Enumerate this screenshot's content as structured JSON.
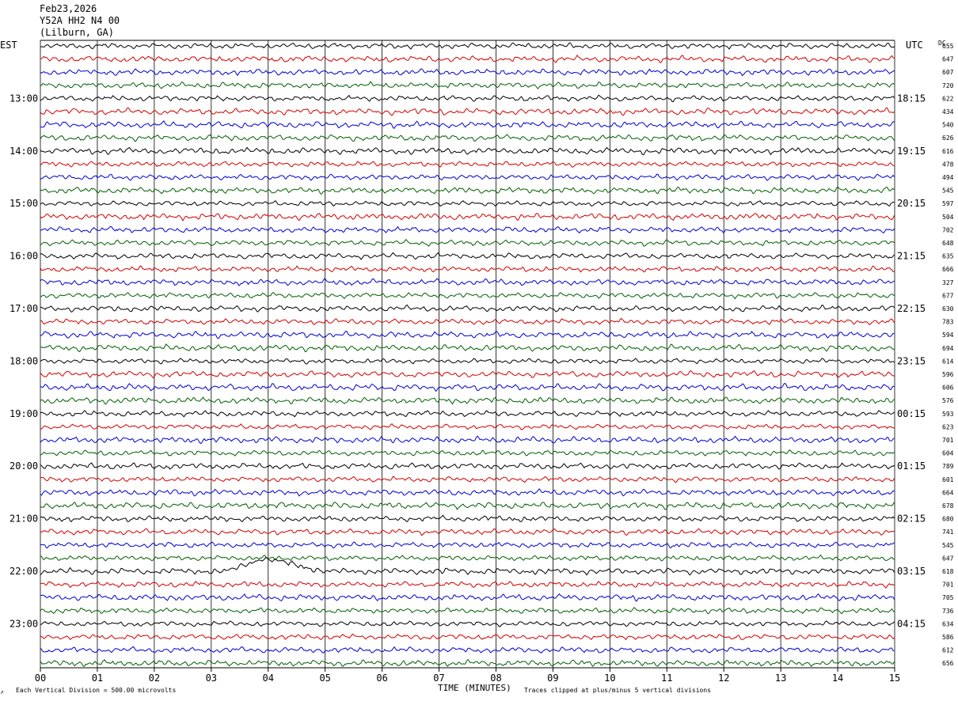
{
  "header": {
    "date": "Feb23,2026",
    "station": "Y52A HH2 N4 00",
    "location": "(Lilburn, GA)"
  },
  "left_axis_label": "EST",
  "right_axis_label": "UTC",
  "dc_label": "DC",
  "footer": {
    "scale_note": "Each Vertical Division =  500.00 microvolts",
    "xlabel": "TIME (MINUTES)",
    "clip_note": "Traces clipped at plus/minus 5 vertical divisions"
  },
  "colors": {
    "trace_cycle": [
      "#000000",
      "#d40000",
      "#0000d4",
      "#006000"
    ],
    "grid": "#000000"
  },
  "chart_data": {
    "type": "line",
    "title": "",
    "xlabel": "TIME (MINUTES)",
    "xlim": [
      0,
      15
    ],
    "x_ticks": [
      "00",
      "01",
      "02",
      "03",
      "04",
      "05",
      "06",
      "07",
      "08",
      "09",
      "10",
      "11",
      "12",
      "13",
      "14",
      "15"
    ],
    "row_count": 48,
    "rows_per_hour": 4,
    "est_hour_labels": [
      "13:00",
      "14:00",
      "15:00",
      "16:00",
      "17:00",
      "18:00",
      "19:00",
      "20:00",
      "21:00",
      "22:00",
      "23:00"
    ],
    "utc_hour_labels": [
      "18:15",
      "19:15",
      "20:15",
      "21:15",
      "22:15",
      "23:15",
      "00:15",
      "01:15",
      "02:15",
      "03:15",
      "04:15"
    ],
    "dc_offsets": [
      655,
      647,
      607,
      720,
      622,
      434,
      540,
      626,
      616,
      478,
      494,
      545,
      597,
      504,
      702,
      648,
      635,
      666,
      327,
      677,
      630,
      783,
      594,
      694,
      614,
      596,
      606,
      576,
      593,
      623,
      701,
      604,
      789,
      601,
      664,
      678,
      680,
      741,
      545,
      647,
      618,
      701,
      705,
      736,
      634,
      586,
      612,
      656
    ],
    "events": [
      {
        "row": 40,
        "minute_start": 3.3,
        "minute_end": 5.0,
        "peak_minute": 3.9,
        "amplitude_div": 1.0
      }
    ]
  }
}
